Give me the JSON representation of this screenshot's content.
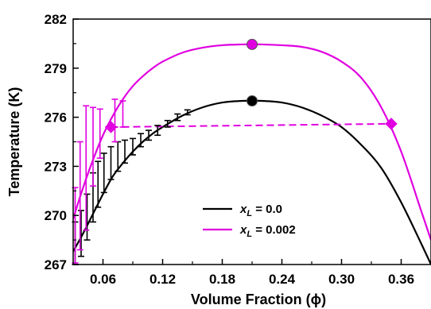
{
  "chart_data": {
    "type": "line",
    "xlabel": "Volume Fraction (ϕ)",
    "ylabel": "Temperature (K)",
    "xlim": [
      0.03,
      0.39
    ],
    "ylim": [
      267,
      282
    ],
    "xticks": [
      0.06,
      0.12,
      0.18,
      0.24,
      0.3,
      0.36
    ],
    "xtick_labels": [
      "0.06",
      "0.12",
      "0.18",
      "0.24",
      "0.30",
      "0.36"
    ],
    "yticks": [
      267,
      270,
      273,
      276,
      279,
      282
    ],
    "ytick_labels": [
      "267",
      "270",
      "273",
      "276",
      "279",
      "282"
    ],
    "grid": false,
    "legend_position": "lower-center",
    "series": [
      {
        "key": "black",
        "legend_var": "x",
        "legend_sub": "L",
        "legend_value": " = 0.0",
        "color": "#000000",
        "x": [
          0.03,
          0.04,
          0.05,
          0.06,
          0.07,
          0.08,
          0.09,
          0.1,
          0.11,
          0.12,
          0.14,
          0.16,
          0.18,
          0.2,
          0.21,
          0.22,
          0.24,
          0.26,
          0.28,
          0.3,
          0.32,
          0.34,
          0.36,
          0.38,
          0.39
        ],
        "y": [
          267.8,
          268.9,
          270.1,
          271.3,
          272.4,
          273.2,
          273.9,
          274.5,
          275.0,
          275.4,
          276.1,
          276.6,
          276.9,
          277.0,
          277.0,
          277.0,
          276.9,
          276.6,
          276.1,
          275.4,
          274.3,
          272.9,
          270.8,
          268.3,
          267.0
        ],
        "critical_point": {
          "x": 0.21,
          "y": 277.0
        },
        "error_bars": [
          {
            "x": 0.032,
            "y": 268.3,
            "err": 1.3
          },
          {
            "x": 0.038,
            "y": 268.9,
            "err": 1.4
          },
          {
            "x": 0.044,
            "y": 269.9,
            "err": 1.4
          },
          {
            "x": 0.05,
            "y": 271.1,
            "err": 1.5
          },
          {
            "x": 0.055,
            "y": 271.9,
            "err": 1.4
          },
          {
            "x": 0.061,
            "y": 272.6,
            "err": 1.2
          },
          {
            "x": 0.068,
            "y": 273.2,
            "err": 1.0
          },
          {
            "x": 0.075,
            "y": 273.6,
            "err": 0.9
          },
          {
            "x": 0.082,
            "y": 273.9,
            "err": 0.7
          },
          {
            "x": 0.09,
            "y": 274.2,
            "err": 0.5
          },
          {
            "x": 0.098,
            "y": 274.6,
            "err": 0.4
          },
          {
            "x": 0.106,
            "y": 274.9,
            "err": 0.3
          },
          {
            "x": 0.115,
            "y": 275.2,
            "err": 0.3
          },
          {
            "x": 0.125,
            "y": 275.6,
            "err": 0.2
          },
          {
            "x": 0.135,
            "y": 276.0,
            "err": 0.2
          },
          {
            "x": 0.145,
            "y": 276.3,
            "err": 0.15
          }
        ]
      },
      {
        "key": "magenta",
        "legend_var": "x",
        "legend_sub": "L",
        "legend_value": " = 0.002",
        "color": "#e000e0",
        "x": [
          0.03,
          0.04,
          0.05,
          0.06,
          0.07,
          0.08,
          0.09,
          0.1,
          0.11,
          0.12,
          0.14,
          0.16,
          0.18,
          0.2,
          0.21,
          0.22,
          0.24,
          0.26,
          0.28,
          0.3,
          0.32,
          0.34,
          0.36,
          0.38,
          0.39
        ],
        "y": [
          269.8,
          271.7,
          273.4,
          274.9,
          276.1,
          277.1,
          277.9,
          278.5,
          279.0,
          279.4,
          279.95,
          280.25,
          280.4,
          280.45,
          280.45,
          280.45,
          280.4,
          280.3,
          280.0,
          279.4,
          278.4,
          276.6,
          273.9,
          270.3,
          268.5
        ],
        "critical_point": {
          "x": 0.21,
          "y": 280.45
        },
        "error_bars": [
          {
            "x": 0.032,
            "y": 269.4,
            "err": 2.3
          },
          {
            "x": 0.037,
            "y": 271.2,
            "err": 3.3
          },
          {
            "x": 0.043,
            "y": 272.9,
            "err": 3.8
          },
          {
            "x": 0.05,
            "y": 274.2,
            "err": 2.4
          },
          {
            "x": 0.057,
            "y": 275.0,
            "err": 1.5
          },
          {
            "x": 0.072,
            "y": 275.8,
            "err": 1.3
          },
          {
            "x": 0.08,
            "y": 276.2,
            "err": 0.8
          }
        ],
        "dashed_line": {
          "x": [
            0.068,
            0.35
          ],
          "y": [
            275.4,
            275.6
          ]
        },
        "diamonds": [
          {
            "x": 0.068,
            "y": 275.4
          },
          {
            "x": 0.35,
            "y": 275.6
          }
        ]
      }
    ]
  }
}
